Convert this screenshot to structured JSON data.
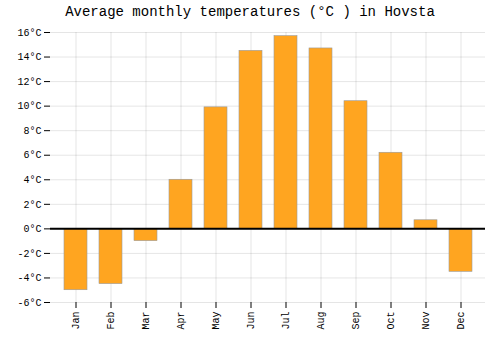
{
  "chart_data": {
    "type": "bar",
    "title": "Average monthly temperatures (°C ) in Hovsta",
    "categories": [
      "Jan",
      "Feb",
      "Mar",
      "Apr",
      "May",
      "Jun",
      "Jul",
      "Aug",
      "Sep",
      "Oct",
      "Nov",
      "Dec"
    ],
    "values": [
      -5.0,
      -4.5,
      -1.0,
      4.0,
      9.9,
      14.5,
      15.7,
      14.7,
      10.4,
      6.2,
      0.7,
      -3.5
    ],
    "color": "#FFA520",
    "ylim": [
      -6,
      16
    ],
    "yticks": [
      {
        "value": -6,
        "label": "-6°C"
      },
      {
        "value": -4,
        "label": "-4°C"
      },
      {
        "value": -2,
        "label": "-2°C"
      },
      {
        "value": 0,
        "label": "0°C"
      },
      {
        "value": 2,
        "label": "2°C"
      },
      {
        "value": 4,
        "label": "4°C"
      },
      {
        "value": 6,
        "label": "6°C"
      },
      {
        "value": 8,
        "label": "8°C"
      },
      {
        "value": 10,
        "label": "10°C"
      },
      {
        "value": 12,
        "label": "12°C"
      },
      {
        "value": 14,
        "label": "14°C"
      },
      {
        "value": 16,
        "label": "16°C"
      }
    ],
    "grid": true
  }
}
